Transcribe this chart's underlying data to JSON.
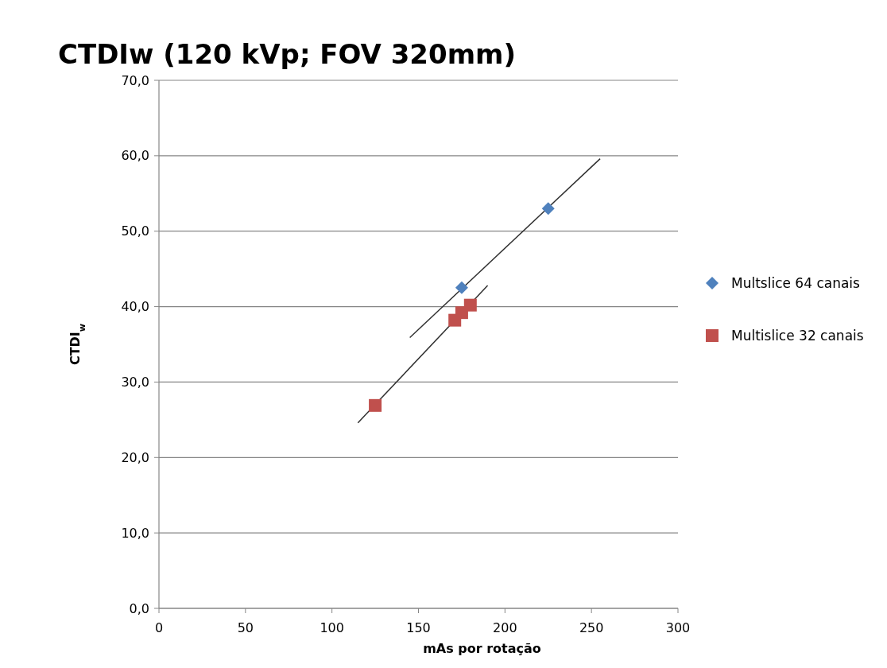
{
  "chart_data": {
    "type": "scatter",
    "title": "CTDIw (120 kVp; FOV 320mm)",
    "xlabel": "mAs por rotação",
    "ylabel": "CTDI$_{w}$",
    "xlim": [
      0,
      300
    ],
    "xticks": [
      0,
      50,
      100,
      150,
      200,
      250,
      300
    ],
    "ylim": [
      0,
      70
    ],
    "yticks": [
      {
        "value": 0,
        "label": "0,0"
      },
      {
        "value": 10,
        "label": "10,0"
      },
      {
        "value": 20,
        "label": "20,0"
      },
      {
        "value": 30,
        "label": "30,0"
      },
      {
        "value": 40,
        "label": "40,0"
      },
      {
        "value": 50,
        "label": "50,0"
      },
      {
        "value": 60,
        "label": "60,0"
      },
      {
        "value": 70,
        "label": "70,0"
      }
    ],
    "grid": "y",
    "legend": "right",
    "series": [
      {
        "name": "Multslice 64 canais",
        "marker": "diamond",
        "color": "#4f81bd",
        "x": [
          175,
          225
        ],
        "values": [
          42.5,
          53.0
        ]
      },
      {
        "name": "Multislice 32 canais",
        "marker": "square",
        "color": "#c0504d",
        "x": [
          125,
          171,
          175,
          180
        ],
        "values": [
          26.9,
          38.2,
          39.2,
          40.2
        ]
      },
      {
        "type": "line",
        "marker": "none",
        "color": "#303030",
        "x": [
          145,
          255
        ],
        "values": [
          35.9,
          59.6
        ]
      },
      {
        "type": "line",
        "marker": "none",
        "color": "#303030",
        "x": [
          115,
          190
        ],
        "values": [
          24.6,
          42.8
        ]
      }
    ]
  }
}
